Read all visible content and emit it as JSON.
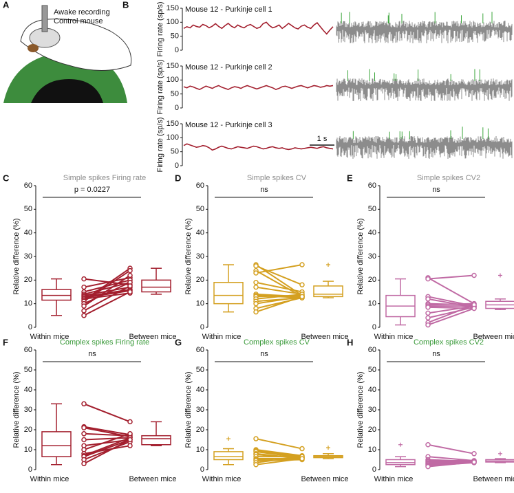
{
  "panel_a": {
    "label": "A",
    "caption": [
      "Awake recording",
      "Control mouse"
    ]
  },
  "chart_data": [
    {
      "type": "line",
      "panel": "B",
      "title": "Mouse 12 - Purkinje cell 1",
      "ylabel": "Firing rate (sp/s)",
      "color": "#a31f2e",
      "ylim": [
        0,
        150
      ],
      "yticks": [
        0,
        50,
        100,
        150
      ],
      "values": [
        78,
        84,
        80,
        90,
        85,
        82,
        92,
        88,
        80,
        86,
        95,
        85,
        78,
        88,
        96,
        86,
        80,
        90,
        84,
        80,
        88,
        92,
        85,
        78,
        82,
        95,
        100,
        88,
        80,
        84,
        90,
        78,
        86,
        96,
        88,
        80,
        76,
        86,
        90,
        82,
        78,
        90,
        98,
        84,
        70,
        58,
        72,
        84
      ]
    },
    {
      "type": "line",
      "title": "Mouse 12 - Purkinje cell 2",
      "ylabel": "Firing rate (sp/s)",
      "color": "#a31f2e",
      "ylim": [
        0,
        150
      ],
      "yticks": [
        0,
        50,
        100,
        150
      ],
      "values": [
        76,
        72,
        78,
        75,
        70,
        66,
        72,
        78,
        74,
        70,
        76,
        80,
        74,
        70,
        66,
        72,
        76,
        74,
        70,
        76,
        80,
        76,
        72,
        68,
        72,
        76,
        80,
        76,
        72,
        66,
        70,
        76,
        78,
        74,
        70,
        74,
        78,
        80,
        76,
        72,
        76,
        80,
        78,
        74,
        76,
        80,
        78,
        80
      ]
    },
    {
      "type": "line",
      "title": "Mouse 12 - Purkinje cell 3",
      "ylabel": "Firing rate (sp/s)",
      "color": "#a31f2e",
      "annotation": "1 s",
      "ylim": [
        0,
        150
      ],
      "yticks": [
        0,
        50,
        100,
        150
      ],
      "values": [
        72,
        78,
        74,
        70,
        66,
        68,
        72,
        70,
        64,
        56,
        60,
        66,
        70,
        66,
        62,
        60,
        64,
        68,
        66,
        64,
        62,
        66,
        70,
        68,
        64,
        60,
        62,
        66,
        68,
        64,
        62,
        64,
        60,
        58,
        60,
        64,
        62,
        60,
        62,
        64,
        66,
        64,
        62,
        66,
        68,
        64,
        62,
        60
      ]
    },
    {
      "type": "box",
      "panel": "C",
      "title": "Simple spikes Firing rate",
      "title_color": "#8c8c8c",
      "annotation": "p = 0.0227",
      "ylabel": "Relative difference (%)",
      "color": "#a31f2e",
      "categories": [
        "Within mice",
        "Between mice"
      ],
      "ylim": [
        0,
        60
      ],
      "yticks": [
        0,
        10,
        20,
        30,
        40,
        50,
        60
      ],
      "boxes": [
        {
          "whislo": 5,
          "q1": 11.5,
          "med": 13.5,
          "q3": 16,
          "whishi": 20.5,
          "fliers": []
        },
        {
          "whislo": 14,
          "q1": 15,
          "med": 17,
          "q3": 20,
          "whishi": 25,
          "fliers": []
        }
      ],
      "pairs": {
        "within": [
          20.5,
          17,
          15,
          14,
          13.5,
          13,
          12.5,
          12,
          11.5,
          11,
          10,
          9,
          7,
          5
        ],
        "between": [
          18,
          21,
          20,
          19,
          17,
          16,
          15.5,
          14.5,
          25,
          24,
          19,
          22,
          17.5,
          15
        ]
      }
    },
    {
      "type": "box",
      "panel": "D",
      "title": "Simple spikes CV",
      "title_color": "#8c8c8c",
      "annotation": "ns",
      "ylabel": "Relative difference (%)",
      "color": "#d4a020",
      "categories": [
        "Within mice",
        "Between mice"
      ],
      "ylim": [
        0,
        60
      ],
      "yticks": [
        0,
        10,
        20,
        30,
        40,
        50,
        60
      ],
      "boxes": [
        {
          "whislo": 6.5,
          "q1": 10,
          "med": 13.5,
          "q3": 19,
          "whishi": 26.5,
          "fliers": []
        },
        {
          "whislo": 12.5,
          "q1": 13,
          "med": 14,
          "q3": 17.5,
          "whishi": 19.5,
          "fliers": [
            26.5
          ]
        }
      ],
      "pairs": {
        "within": [
          26.5,
          26,
          24,
          23,
          19,
          17,
          14,
          13.5,
          13,
          12,
          11,
          10,
          8,
          6.5
        ],
        "between": [
          13.5,
          18,
          13,
          26.5,
          15,
          14,
          13,
          12.5,
          13.5,
          14,
          12.5,
          13,
          12.5,
          13
        ]
      }
    },
    {
      "type": "box",
      "panel": "E",
      "title": "Simple spikes CV2",
      "title_color": "#8c8c8c",
      "annotation": "ns",
      "ylabel": "Relative difference (%)",
      "color": "#c06aa4",
      "categories": [
        "Within mice",
        "Between mice"
      ],
      "ylim": [
        0,
        60
      ],
      "yticks": [
        0,
        10,
        20,
        30,
        40,
        50,
        60
      ],
      "boxes": [
        {
          "whislo": 1,
          "q1": 4.5,
          "med": 9,
          "q3": 13.5,
          "whishi": 20.5,
          "fliers": []
        },
        {
          "whislo": 7.5,
          "q1": 8,
          "med": 9.5,
          "q3": 11,
          "whishi": 12,
          "fliers": [
            22
          ]
        }
      ],
      "pairs": {
        "within": [
          21,
          20.5,
          13,
          12,
          10,
          9.5,
          9,
          8.5,
          6,
          4,
          2,
          1
        ],
        "between": [
          10,
          22,
          9,
          8.5,
          9.5,
          10,
          9,
          8,
          9,
          8.5,
          9.5,
          8
        ]
      }
    },
    {
      "type": "box",
      "panel": "F",
      "title": "Complex spikes Firing rate",
      "title_color": "#3a9a3a",
      "annotation": "ns",
      "ylabel": "Relative difference (%)",
      "color": "#a31f2e",
      "categories": [
        "Within mice",
        "Between mice"
      ],
      "ylim": [
        0,
        60
      ],
      "yticks": [
        0,
        10,
        20,
        30,
        40,
        50,
        60
      ],
      "boxes": [
        {
          "whislo": 2.5,
          "q1": 6.5,
          "med": 12,
          "q3": 19,
          "whishi": 33,
          "fliers": []
        },
        {
          "whislo": 12,
          "q1": 12.5,
          "med": 15.5,
          "q3": 17,
          "whishi": 24,
          "fliers": []
        }
      ],
      "pairs": {
        "within": [
          33,
          21.5,
          21,
          18,
          15,
          12,
          10,
          8,
          7,
          6.5,
          5,
          3
        ],
        "between": [
          24,
          17.5,
          16.5,
          17,
          16,
          15,
          18,
          12,
          16,
          15,
          14,
          15
        ]
      }
    },
    {
      "type": "box",
      "panel": "G",
      "title": "Complex spikes CV",
      "title_color": "#3a9a3a",
      "annotation": "ns",
      "ylabel": "Relative difference (%)",
      "color": "#d4a020",
      "categories": [
        "Within mice",
        "Between mice"
      ],
      "ylim": [
        0,
        60
      ],
      "yticks": [
        0,
        10,
        20,
        30,
        40,
        50,
        60
      ],
      "boxes": [
        {
          "whislo": 2.5,
          "q1": 5,
          "med": 6.5,
          "q3": 9,
          "whishi": 10.5,
          "fliers": [
            15.5
          ]
        },
        {
          "whislo": 5.5,
          "q1": 6,
          "med": 6.5,
          "q3": 7,
          "whishi": 8,
          "fliers": [
            11
          ]
        }
      ],
      "pairs": {
        "within": [
          15.5,
          10,
          9.5,
          9,
          8,
          7.5,
          6.5,
          5.5,
          5,
          4.5,
          3.5,
          2.5
        ],
        "between": [
          10.5,
          7,
          6.5,
          6,
          5.5,
          6,
          6.5,
          5.5,
          6,
          5,
          6.5,
          5.5
        ]
      }
    },
    {
      "type": "box",
      "panel": "H",
      "title": "Complex spikes CV2",
      "title_color": "#3a9a3a",
      "annotation": "ns",
      "ylabel": "Relative difference (%)",
      "color": "#c06aa4",
      "categories": [
        "Within mice",
        "Between mice"
      ],
      "ylim": [
        0,
        60
      ],
      "yticks": [
        0,
        10,
        20,
        30,
        40,
        50,
        60
      ],
      "boxes": [
        {
          "whislo": 1.5,
          "q1": 2.5,
          "med": 3.5,
          "q3": 5,
          "whishi": 6.5,
          "fliers": [
            12.5
          ]
        },
        {
          "whislo": 3.5,
          "q1": 3.8,
          "med": 4.3,
          "q3": 5,
          "whishi": 5.5,
          "fliers": [
            8
          ]
        }
      ],
      "pairs": {
        "within": [
          12.5,
          6.5,
          5,
          4.5,
          4,
          3.5,
          3,
          2.5,
          2,
          1.5
        ],
        "between": [
          8,
          4.5,
          4,
          4.5,
          4,
          4,
          3.5,
          4,
          3.5,
          3.8
        ]
      }
    }
  ]
}
